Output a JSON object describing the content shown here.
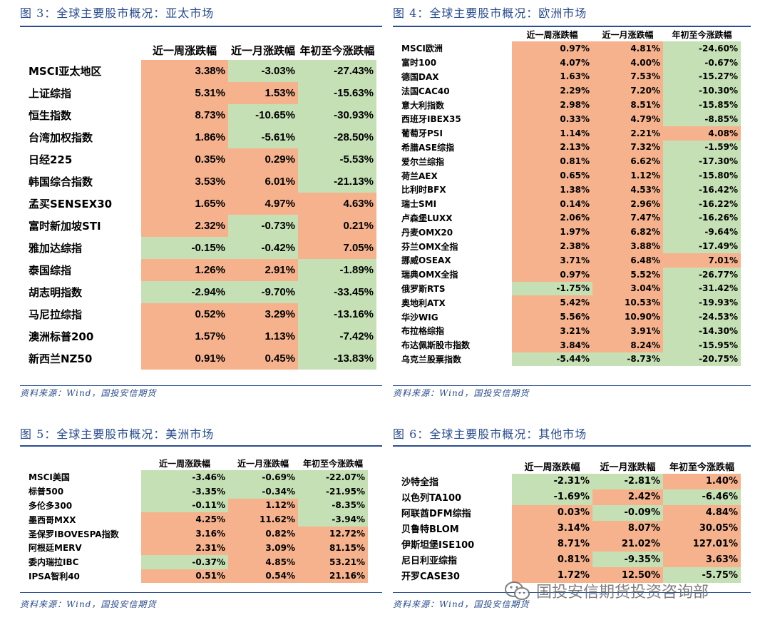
{
  "headers": [
    "近一周涨跌幅",
    "近一月涨跌幅",
    "年初至今涨跌幅"
  ],
  "source": "资料来源：Wind，国投安信期货",
  "watermark": "国投安信期货投资咨询部",
  "colors": {
    "positive": "#f5b28d",
    "negative": "#c5e0b4",
    "title": "#2a4d8f"
  },
  "fig3": {
    "title": "图 3：全球主要股市概况：亚太市场",
    "rows": [
      {
        "name": "MSCI亚太地区",
        "w": "3.38%",
        "m": "-3.03%",
        "y": "-27.43%"
      },
      {
        "name": "上证综指",
        "w": "5.31%",
        "m": "1.53%",
        "y": "-15.63%"
      },
      {
        "name": "恒生指数",
        "w": "8.73%",
        "m": "-10.65%",
        "y": "-30.93%"
      },
      {
        "name": "台湾加权指数",
        "w": "1.86%",
        "m": "-5.61%",
        "y": "-28.50%"
      },
      {
        "name": "日经225",
        "w": "0.35%",
        "m": "0.29%",
        "y": "-5.53%"
      },
      {
        "name": "韩国综合指数",
        "w": "3.53%",
        "m": "6.01%",
        "y": "-21.13%"
      },
      {
        "name": "孟买SENSEX30",
        "w": "1.65%",
        "m": "4.97%",
        "y": "4.63%"
      },
      {
        "name": "富时新加坡STI",
        "w": "2.32%",
        "m": "-0.73%",
        "y": "0.21%"
      },
      {
        "name": "雅加达综指",
        "w": "-0.15%",
        "m": "-0.42%",
        "y": "7.05%"
      },
      {
        "name": "泰国综指",
        "w": "1.26%",
        "m": "2.91%",
        "y": "-1.89%"
      },
      {
        "name": "胡志明指数",
        "w": "-2.94%",
        "m": "-9.70%",
        "y": "-33.45%"
      },
      {
        "name": "马尼拉综指",
        "w": "0.52%",
        "m": "3.29%",
        "y": "-13.16%"
      },
      {
        "name": "澳洲标普200",
        "w": "1.57%",
        "m": "1.13%",
        "y": "-7.42%"
      },
      {
        "name": "新西兰NZ50",
        "w": "0.91%",
        "m": "0.45%",
        "y": "-13.83%"
      }
    ]
  },
  "fig4": {
    "title": "图 4：全球主要股市概况：欧洲市场",
    "rows": [
      {
        "name": "MSCI欧洲",
        "w": "0.97%",
        "m": "4.81%",
        "y": "-24.60%"
      },
      {
        "name": "富时100",
        "w": "4.07%",
        "m": "4.00%",
        "y": "-0.67%"
      },
      {
        "name": "德国DAX",
        "w": "1.63%",
        "m": "7.53%",
        "y": "-15.27%"
      },
      {
        "name": "法国CAC40",
        "w": "2.29%",
        "m": "7.20%",
        "y": "-10.30%"
      },
      {
        "name": "意大利指数",
        "w": "2.98%",
        "m": "8.51%",
        "y": "-15.85%"
      },
      {
        "name": "西班牙IBEX35",
        "w": "0.33%",
        "m": "4.79%",
        "y": "-8.85%"
      },
      {
        "name": "葡萄牙PSI",
        "w": "1.14%",
        "m": "2.21%",
        "y": "4.08%"
      },
      {
        "name": "希腊ASE综指",
        "w": "2.13%",
        "m": "7.32%",
        "y": "-1.59%"
      },
      {
        "name": "爱尔兰综指",
        "w": "0.81%",
        "m": "6.62%",
        "y": "-17.30%"
      },
      {
        "name": "荷兰AEX",
        "w": "0.65%",
        "m": "1.12%",
        "y": "-15.80%"
      },
      {
        "name": "比利时BFX",
        "w": "1.38%",
        "m": "4.53%",
        "y": "-16.42%"
      },
      {
        "name": "瑞士SMI",
        "w": "0.14%",
        "m": "2.96%",
        "y": "-16.22%"
      },
      {
        "name": "卢森堡LUXX",
        "w": "2.06%",
        "m": "7.47%",
        "y": "-16.26%"
      },
      {
        "name": "丹麦OMX20",
        "w": "1.97%",
        "m": "6.82%",
        "y": "-9.64%"
      },
      {
        "name": "芬兰OMX全指",
        "w": "2.38%",
        "m": "3.88%",
        "y": "-17.49%"
      },
      {
        "name": "挪威OSEAX",
        "w": "3.71%",
        "m": "6.48%",
        "y": "7.01%"
      },
      {
        "name": "瑞典OMX全指",
        "w": "0.97%",
        "m": "5.52%",
        "y": "-26.77%"
      },
      {
        "name": "俄罗斯RTS",
        "w": "-1.75%",
        "m": "3.04%",
        "y": "-31.42%"
      },
      {
        "name": "奥地利ATX",
        "w": "5.42%",
        "m": "10.53%",
        "y": "-19.93%"
      },
      {
        "name": "华沙WIG",
        "w": "5.56%",
        "m": "10.90%",
        "y": "-24.53%"
      },
      {
        "name": "布拉格综指",
        "w": "3.21%",
        "m": "3.91%",
        "y": "-14.30%"
      },
      {
        "name": "布达佩斯股市指数",
        "w": "3.84%",
        "m": "8.24%",
        "y": "-15.95%"
      },
      {
        "name": "乌克兰股票指数",
        "w": "-5.44%",
        "m": "-8.73%",
        "y": "-20.75%"
      }
    ]
  },
  "fig5": {
    "title": "图 5：全球主要股市概况：美洲市场",
    "rows": [
      {
        "name": "MSCI美国",
        "w": "-3.46%",
        "m": "-0.69%",
        "y": "-22.07%"
      },
      {
        "name": "标普500",
        "w": "-3.35%",
        "m": "-0.34%",
        "y": "-21.95%"
      },
      {
        "name": "多伦多300",
        "w": "-0.11%",
        "m": "1.12%",
        "y": "-8.35%"
      },
      {
        "name": "墨西哥MXX",
        "w": "4.25%",
        "m": "11.62%",
        "y": "-3.94%"
      },
      {
        "name": "圣保罗IBOVESPA指数",
        "w": "3.16%",
        "m": "0.82%",
        "y": "12.72%"
      },
      {
        "name": "阿根廷MERV",
        "w": "2.31%",
        "m": "3.09%",
        "y": "81.15%"
      },
      {
        "name": "委内瑞拉IBC",
        "w": "-0.37%",
        "m": "4.85%",
        "y": "53.21%"
      },
      {
        "name": "IPSA智利40",
        "w": "0.51%",
        "m": "0.54%",
        "y": "21.16%"
      }
    ]
  },
  "fig6": {
    "title": "图 6：全球主要股市概况：其他市场",
    "rows": [
      {
        "name": "沙特全指",
        "w": "-2.31%",
        "m": "-2.81%",
        "y": "1.40%"
      },
      {
        "name": "以色列TA100",
        "w": "-1.69%",
        "m": "2.42%",
        "y": "-6.46%"
      },
      {
        "name": "阿联酋DFM综指",
        "w": "0.03%",
        "m": "-0.09%",
        "y": "4.84%"
      },
      {
        "name": "贝鲁特BLOM",
        "w": "3.14%",
        "m": "8.07%",
        "y": "30.05%"
      },
      {
        "name": "伊斯坦堡ISE100",
        "w": "8.71%",
        "m": "21.02%",
        "y": "127.01%"
      },
      {
        "name": "尼日利亚综指",
        "w": "0.81%",
        "m": "-9.35%",
        "y": "3.63%"
      },
      {
        "name": "开罗CASE30",
        "w": "1.72%",
        "m": "12.50%",
        "y": "-5.75%"
      }
    ]
  }
}
